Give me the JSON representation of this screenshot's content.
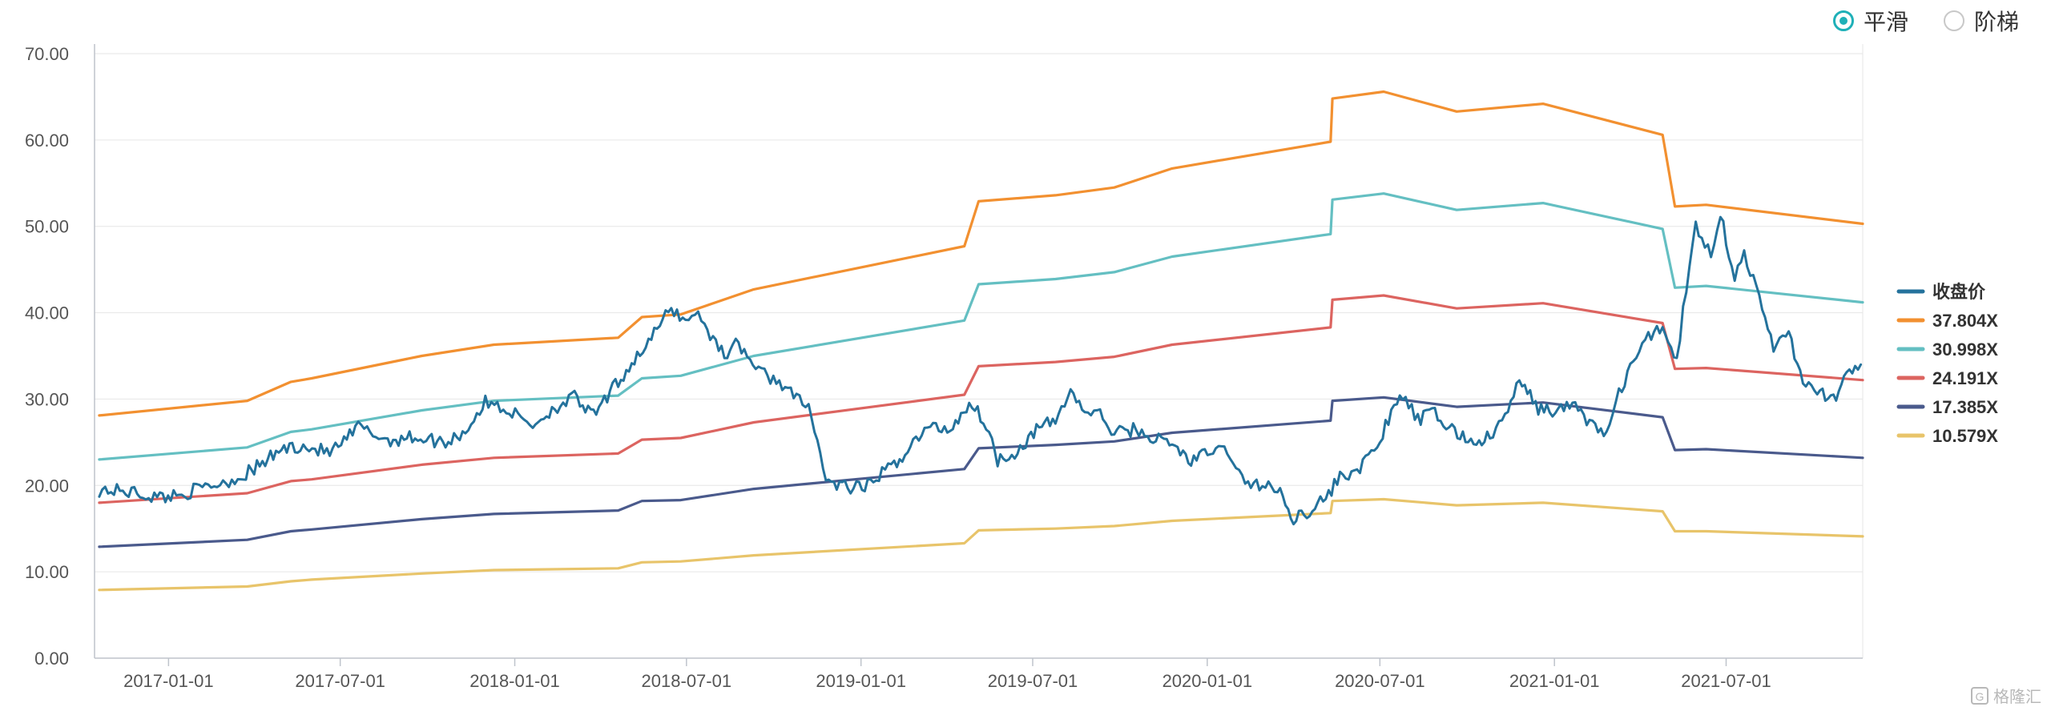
{
  "mode_toggle": {
    "options": [
      {
        "label": "平滑",
        "selected": true
      },
      {
        "label": "阶梯",
        "selected": false
      }
    ],
    "accent_color": "#1fb0b8"
  },
  "watermark": {
    "text": "格隆汇",
    "logo_glyph": "G"
  },
  "chart_data": {
    "type": "line",
    "title": "",
    "xlabel": "",
    "ylabel": "",
    "ylim": [
      0,
      70
    ],
    "yticks": [
      "70.00",
      "60.00",
      "50.00",
      "40.00",
      "30.00",
      "20.00",
      "10.00",
      "0.00"
    ],
    "xlim": [
      "2016-10-15",
      "2021-11-22"
    ],
    "xticks": [
      "2017-01-01",
      "2017-07-01",
      "2018-01-01",
      "2018-07-01",
      "2019-01-01",
      "2019-07-01",
      "2020-01-01",
      "2020-07-01",
      "2021-01-01",
      "2021-07-01"
    ],
    "grid": "horizontal",
    "legend_position": "right",
    "series": [
      {
        "name": "收盘价",
        "color": "#24729c",
        "noisy": true,
        "points": [
          [
            "2016-10-20",
            19.5
          ],
          [
            "2016-11-20",
            19.3
          ],
          [
            "2016-12-20",
            18.6
          ],
          [
            "2017-01-15",
            19.0
          ],
          [
            "2017-02-15",
            20.0
          ],
          [
            "2017-03-15",
            20.8
          ],
          [
            "2017-04-10",
            22.5
          ],
          [
            "2017-04-30",
            24.2
          ],
          [
            "2017-05-20",
            24.6
          ],
          [
            "2017-06-20",
            23.8
          ],
          [
            "2017-07-05",
            25.0
          ],
          [
            "2017-07-20",
            26.8
          ],
          [
            "2017-08-20",
            25.2
          ],
          [
            "2017-09-15",
            25.6
          ],
          [
            "2017-10-20",
            25.0
          ],
          [
            "2017-11-10",
            26.3
          ],
          [
            "2017-12-01",
            29.6
          ],
          [
            "2017-12-20",
            29.0
          ],
          [
            "2018-01-20",
            27.0
          ],
          [
            "2018-02-15",
            29.2
          ],
          [
            "2018-03-05",
            30.2
          ],
          [
            "2018-03-25",
            28.0
          ],
          [
            "2018-04-20",
            32.0
          ],
          [
            "2018-05-10",
            35.0
          ],
          [
            "2018-05-25",
            37.0
          ],
          [
            "2018-06-15",
            40.6
          ],
          [
            "2018-06-30",
            39.0
          ],
          [
            "2018-07-10",
            40.2
          ],
          [
            "2018-07-20",
            38.5
          ],
          [
            "2018-08-10",
            35.2
          ],
          [
            "2018-08-25",
            36.5
          ],
          [
            "2018-09-15",
            33.2
          ],
          [
            "2018-10-10",
            31.8
          ],
          [
            "2018-10-25",
            30.0
          ],
          [
            "2018-11-10",
            28.5
          ],
          [
            "2018-11-25",
            20.5
          ],
          [
            "2018-12-15",
            19.8
          ],
          [
            "2019-01-05",
            19.6
          ],
          [
            "2019-01-20",
            21.2
          ],
          [
            "2019-02-05",
            22.3
          ],
          [
            "2019-02-25",
            25.0
          ],
          [
            "2019-03-15",
            26.8
          ],
          [
            "2019-04-05",
            26.5
          ],
          [
            "2019-04-25",
            29.5
          ],
          [
            "2019-05-10",
            27.8
          ],
          [
            "2019-05-25",
            23.0
          ],
          [
            "2019-06-15",
            24.0
          ],
          [
            "2019-07-05",
            26.5
          ],
          [
            "2019-07-25",
            27.5
          ],
          [
            "2019-08-10",
            31.0
          ],
          [
            "2019-08-25",
            28.5
          ],
          [
            "2019-09-10",
            28.2
          ],
          [
            "2019-09-25",
            26.0
          ],
          [
            "2019-10-15",
            26.5
          ],
          [
            "2019-11-05",
            25.5
          ],
          [
            "2019-11-25",
            24.8
          ],
          [
            "2019-12-15",
            22.8
          ],
          [
            "2020-01-10",
            24.2
          ],
          [
            "2020-01-25",
            23.8
          ],
          [
            "2020-02-10",
            20.0
          ],
          [
            "2020-02-25",
            20.2
          ],
          [
            "2020-03-15",
            19.5
          ],
          [
            "2020-04-01",
            16.2
          ],
          [
            "2020-04-15",
            17.0
          ],
          [
            "2020-05-05",
            18.5
          ],
          [
            "2020-05-20",
            21.0
          ],
          [
            "2020-06-10",
            22.0
          ],
          [
            "2020-06-25",
            24.0
          ],
          [
            "2020-07-10",
            27.5
          ],
          [
            "2020-07-25",
            30.5
          ],
          [
            "2020-08-10",
            27.5
          ],
          [
            "2020-08-25",
            28.5
          ],
          [
            "2020-09-15",
            26.5
          ],
          [
            "2020-10-05",
            25.0
          ],
          [
            "2020-10-25",
            25.5
          ],
          [
            "2020-11-10",
            28.0
          ],
          [
            "2020-11-25",
            32.0
          ],
          [
            "2020-12-15",
            29.0
          ],
          [
            "2021-01-05",
            28.5
          ],
          [
            "2021-01-20",
            29.5
          ],
          [
            "2021-02-10",
            27.0
          ],
          [
            "2021-02-25",
            26.0
          ],
          [
            "2021-03-10",
            30.5
          ],
          [
            "2021-03-25",
            34.5
          ],
          [
            "2021-04-10",
            37.0
          ],
          [
            "2021-04-25",
            38.5
          ],
          [
            "2021-05-10",
            34.5
          ],
          [
            "2021-05-20",
            43.0
          ],
          [
            "2021-05-30",
            50.0
          ],
          [
            "2021-06-15",
            47.0
          ],
          [
            "2021-06-25",
            51.5
          ],
          [
            "2021-07-10",
            44.0
          ],
          [
            "2021-07-20",
            47.0
          ],
          [
            "2021-08-05",
            41.5
          ],
          [
            "2021-08-20",
            36.0
          ],
          [
            "2021-09-05",
            38.0
          ],
          [
            "2021-09-20",
            31.5
          ],
          [
            "2021-10-05",
            31.0
          ],
          [
            "2021-10-25",
            30.0
          ],
          [
            "2021-11-05",
            32.5
          ],
          [
            "2021-11-20",
            34.0
          ]
        ]
      },
      {
        "name": "37.804X",
        "color": "#f29030",
        "points": [
          [
            "2016-10-20",
            28.1
          ],
          [
            "2017-03-25",
            29.8
          ],
          [
            "2017-05-10",
            32.0
          ],
          [
            "2017-06-01",
            32.4
          ],
          [
            "2017-09-25",
            35.0
          ],
          [
            "2017-12-10",
            36.3
          ],
          [
            "2018-04-20",
            37.1
          ],
          [
            "2018-05-15",
            39.5
          ],
          [
            "2018-06-25",
            39.8
          ],
          [
            "2018-09-10",
            42.7
          ],
          [
            "2019-04-20",
            47.7
          ],
          [
            "2019-05-05",
            52.9
          ],
          [
            "2019-07-25",
            53.6
          ],
          [
            "2019-09-25",
            54.5
          ],
          [
            "2019-11-25",
            56.7
          ],
          [
            "2020-05-10",
            59.8
          ],
          [
            "2020-05-12",
            64.8
          ],
          [
            "2020-07-05",
            65.6
          ],
          [
            "2020-09-20",
            63.3
          ],
          [
            "2020-12-20",
            64.2
          ],
          [
            "2021-04-25",
            60.6
          ],
          [
            "2021-05-08",
            52.3
          ],
          [
            "2021-06-10",
            52.5
          ],
          [
            "2021-11-22",
            50.3
          ]
        ]
      },
      {
        "name": "30.998X",
        "color": "#64bfc2",
        "points": [
          [
            "2016-10-20",
            23.0
          ],
          [
            "2017-03-25",
            24.4
          ],
          [
            "2017-05-10",
            26.2
          ],
          [
            "2017-06-01",
            26.5
          ],
          [
            "2017-09-25",
            28.7
          ],
          [
            "2017-12-10",
            29.8
          ],
          [
            "2018-04-20",
            30.4
          ],
          [
            "2018-05-15",
            32.4
          ],
          [
            "2018-06-25",
            32.7
          ],
          [
            "2018-09-10",
            35.0
          ],
          [
            "2019-04-20",
            39.1
          ],
          [
            "2019-05-05",
            43.3
          ],
          [
            "2019-07-25",
            43.9
          ],
          [
            "2019-09-25",
            44.7
          ],
          [
            "2019-11-25",
            46.5
          ],
          [
            "2020-05-10",
            49.1
          ],
          [
            "2020-05-12",
            53.1
          ],
          [
            "2020-07-05",
            53.8
          ],
          [
            "2020-09-20",
            51.9
          ],
          [
            "2020-12-20",
            52.7
          ],
          [
            "2021-04-25",
            49.7
          ],
          [
            "2021-05-08",
            42.9
          ],
          [
            "2021-06-10",
            43.1
          ],
          [
            "2021-11-22",
            41.2
          ]
        ]
      },
      {
        "name": "24.191X",
        "color": "#dc6460",
        "points": [
          [
            "2016-10-20",
            18.0
          ],
          [
            "2017-03-25",
            19.1
          ],
          [
            "2017-05-10",
            20.5
          ],
          [
            "2017-06-01",
            20.7
          ],
          [
            "2017-09-25",
            22.4
          ],
          [
            "2017-12-10",
            23.2
          ],
          [
            "2018-04-20",
            23.7
          ],
          [
            "2018-05-15",
            25.3
          ],
          [
            "2018-06-25",
            25.5
          ],
          [
            "2018-09-10",
            27.3
          ],
          [
            "2019-04-20",
            30.5
          ],
          [
            "2019-05-05",
            33.8
          ],
          [
            "2019-07-25",
            34.3
          ],
          [
            "2019-09-25",
            34.9
          ],
          [
            "2019-11-25",
            36.3
          ],
          [
            "2020-05-10",
            38.3
          ],
          [
            "2020-05-12",
            41.5
          ],
          [
            "2020-07-05",
            42.0
          ],
          [
            "2020-09-20",
            40.5
          ],
          [
            "2020-12-20",
            41.1
          ],
          [
            "2021-04-25",
            38.8
          ],
          [
            "2021-05-08",
            33.5
          ],
          [
            "2021-06-10",
            33.6
          ],
          [
            "2021-11-22",
            32.2
          ]
        ]
      },
      {
        "name": "17.385X",
        "color": "#4a5a8c",
        "points": [
          [
            "2016-10-20",
            12.9
          ],
          [
            "2017-03-25",
            13.7
          ],
          [
            "2017-05-10",
            14.7
          ],
          [
            "2017-06-01",
            14.9
          ],
          [
            "2017-09-25",
            16.1
          ],
          [
            "2017-12-10",
            16.7
          ],
          [
            "2018-04-20",
            17.1
          ],
          [
            "2018-05-15",
            18.2
          ],
          [
            "2018-06-25",
            18.3
          ],
          [
            "2018-09-10",
            19.6
          ],
          [
            "2019-04-20",
            21.9
          ],
          [
            "2019-05-05",
            24.3
          ],
          [
            "2019-07-25",
            24.7
          ],
          [
            "2019-09-25",
            25.1
          ],
          [
            "2019-11-25",
            26.1
          ],
          [
            "2020-05-10",
            27.5
          ],
          [
            "2020-05-12",
            29.8
          ],
          [
            "2020-07-05",
            30.2
          ],
          [
            "2020-09-20",
            29.1
          ],
          [
            "2020-12-20",
            29.6
          ],
          [
            "2021-04-25",
            27.9
          ],
          [
            "2021-05-08",
            24.1
          ],
          [
            "2021-06-10",
            24.2
          ],
          [
            "2021-11-22",
            23.2
          ]
        ]
      },
      {
        "name": "10.579X",
        "color": "#e8c46a",
        "points": [
          [
            "2016-10-20",
            7.9
          ],
          [
            "2017-03-25",
            8.3
          ],
          [
            "2017-05-10",
            8.9
          ],
          [
            "2017-06-01",
            9.1
          ],
          [
            "2017-09-25",
            9.8
          ],
          [
            "2017-12-10",
            10.2
          ],
          [
            "2018-04-20",
            10.4
          ],
          [
            "2018-05-15",
            11.1
          ],
          [
            "2018-06-25",
            11.2
          ],
          [
            "2018-09-10",
            11.9
          ],
          [
            "2019-04-20",
            13.3
          ],
          [
            "2019-05-05",
            14.8
          ],
          [
            "2019-07-25",
            15.0
          ],
          [
            "2019-09-25",
            15.3
          ],
          [
            "2019-11-25",
            15.9
          ],
          [
            "2020-05-10",
            16.8
          ],
          [
            "2020-05-12",
            18.2
          ],
          [
            "2020-07-05",
            18.4
          ],
          [
            "2020-09-20",
            17.7
          ],
          [
            "2020-12-20",
            18.0
          ],
          [
            "2021-04-25",
            17.0
          ],
          [
            "2021-05-08",
            14.7
          ],
          [
            "2021-06-10",
            14.7
          ],
          [
            "2021-11-22",
            14.1
          ]
        ]
      }
    ]
  }
}
